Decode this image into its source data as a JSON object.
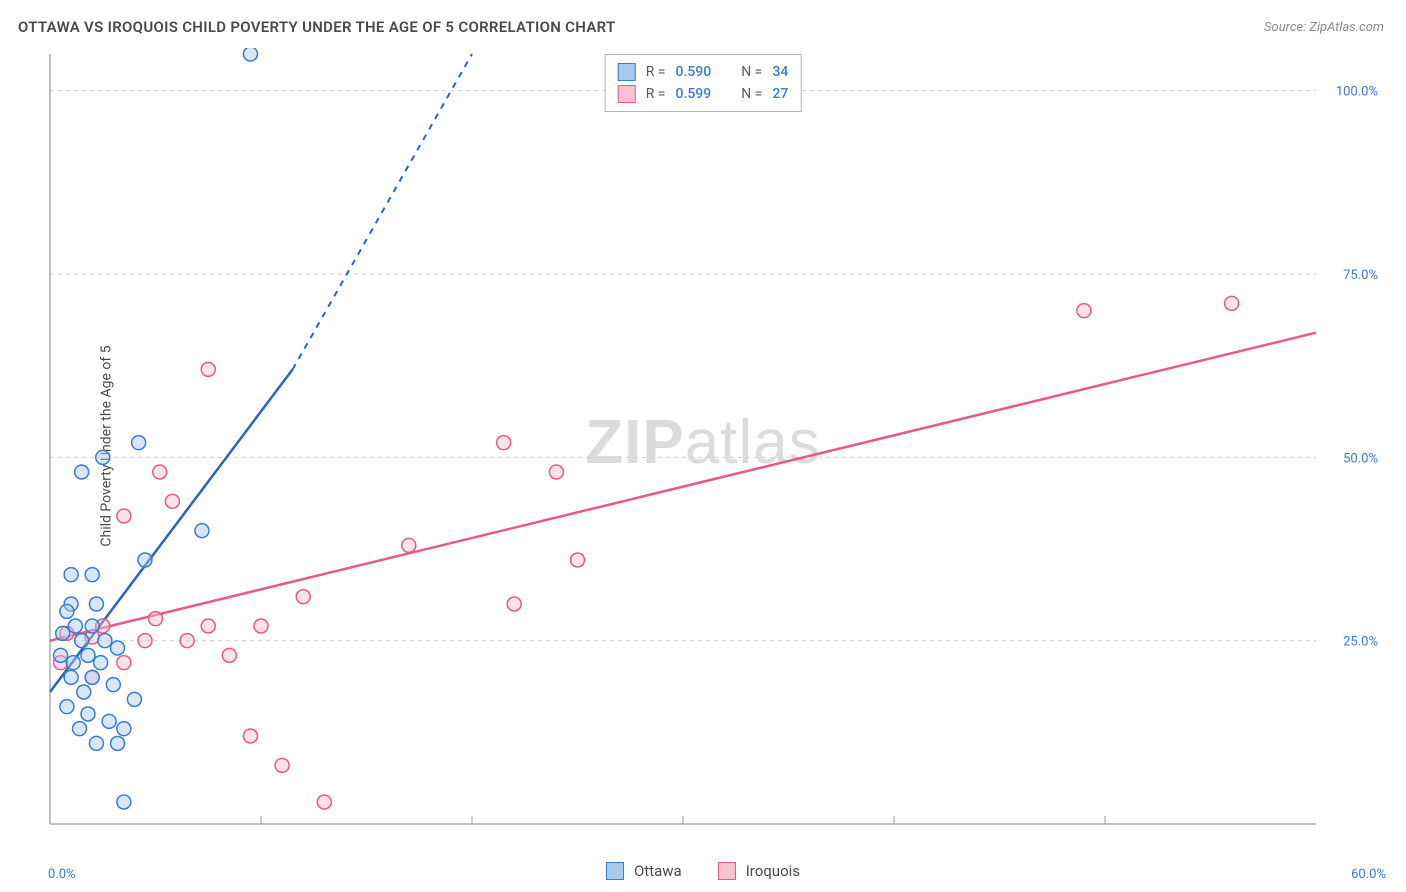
{
  "title": "OTTAWA VS IROQUOIS CHILD POVERTY UNDER THE AGE OF 5 CORRELATION CHART",
  "source": "Source: ZipAtlas.com",
  "y_axis_label": "Child Poverty Under the Age of 5",
  "watermark_bold": "ZIP",
  "watermark_rest": "atlas",
  "chart": {
    "type": "scatter",
    "xlim": [
      0,
      60
    ],
    "ylim": [
      0,
      105
    ],
    "x_min_label": "0.0%",
    "x_max_label": "60.0%",
    "y_ticks": [
      25,
      50,
      75,
      100
    ],
    "y_tick_labels": [
      "25.0%",
      "50.0%",
      "75.0%",
      "100.0%"
    ],
    "x_grid_ticks": [
      10,
      20,
      30,
      40,
      50
    ],
    "axis_color": "#9a9a9a",
    "grid_color": "#cfcfcf",
    "tick_label_color": "#3a7bd5",
    "background_color": "#ffffff",
    "marker_radius": 7
  },
  "series": {
    "ottawa": {
      "label": "Ottawa",
      "fill": "#a9c9ec",
      "stroke": "#3a7bd5",
      "trend_color": "#2a64c0",
      "trend_p1": [
        0,
        18
      ],
      "trend_p2": [
        11.5,
        62
      ],
      "trend_extend": [
        20,
        105
      ],
      "points": [
        [
          9.5,
          105
        ],
        [
          2.5,
          50
        ],
        [
          4.2,
          52
        ],
        [
          1.5,
          48
        ],
        [
          1.0,
          34
        ],
        [
          2.0,
          34
        ],
        [
          7.2,
          40
        ],
        [
          4.5,
          36
        ],
        [
          1.0,
          30
        ],
        [
          2.2,
          30
        ],
        [
          1.2,
          27
        ],
        [
          2.0,
          27
        ],
        [
          0.8,
          29
        ],
        [
          0.6,
          26
        ],
        [
          1.5,
          25
        ],
        [
          2.6,
          25
        ],
        [
          0.5,
          23
        ],
        [
          1.8,
          23
        ],
        [
          1.1,
          22
        ],
        [
          2.4,
          22
        ],
        [
          3.2,
          24
        ],
        [
          1.0,
          20
        ],
        [
          2.0,
          20
        ],
        [
          3.0,
          19
        ],
        [
          1.6,
          18
        ],
        [
          4.0,
          17
        ],
        [
          0.8,
          16
        ],
        [
          1.8,
          15
        ],
        [
          2.8,
          14
        ],
        [
          3.5,
          13
        ],
        [
          1.4,
          13
        ],
        [
          2.2,
          11
        ],
        [
          3.2,
          11
        ],
        [
          3.5,
          3
        ]
      ]
    },
    "iroquois": {
      "label": "Iroquois",
      "fill": "#f5c4cf",
      "stroke": "#e85b81",
      "trend_color": "#e85b81",
      "trend_p1": [
        0,
        25
      ],
      "trend_p2": [
        60,
        67
      ],
      "points": [
        [
          49,
          70
        ],
        [
          56,
          71
        ],
        [
          7.5,
          62
        ],
        [
          21.5,
          52
        ],
        [
          5.2,
          48
        ],
        [
          5.8,
          44
        ],
        [
          24,
          48
        ],
        [
          3.5,
          42
        ],
        [
          17,
          38
        ],
        [
          25,
          36
        ],
        [
          12,
          31
        ],
        [
          22,
          30
        ],
        [
          5.0,
          28
        ],
        [
          7.5,
          27
        ],
        [
          10,
          27
        ],
        [
          2.5,
          27
        ],
        [
          2.0,
          25.5
        ],
        [
          0.8,
          26
        ],
        [
          4.5,
          25
        ],
        [
          6.5,
          25
        ],
        [
          0.5,
          22
        ],
        [
          8.5,
          23
        ],
        [
          3.5,
          22
        ],
        [
          2.0,
          20
        ],
        [
          9.5,
          12
        ],
        [
          11,
          8
        ],
        [
          13,
          3
        ]
      ]
    }
  },
  "stats": {
    "ottawa": {
      "R": "0.590",
      "N": "34"
    },
    "iroquois": {
      "R": "0.599",
      "N": "27"
    }
  },
  "stat_labels": {
    "R": "R =",
    "N": "N ="
  }
}
